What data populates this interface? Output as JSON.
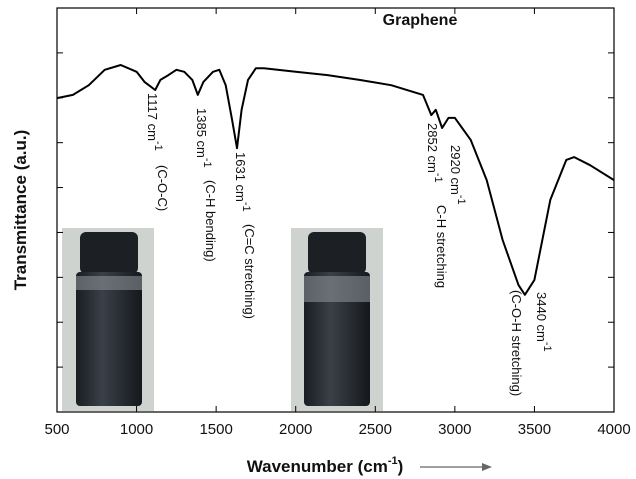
{
  "chart_data": {
    "type": "line",
    "title": "Graphene",
    "xlabel": "Wavenumber (cm",
    "xlabel_sup": "-1",
    "xlabel_end": ")",
    "ylabel": "Transmittance (a.u.)",
    "xlim": [
      500,
      4000
    ],
    "xticks": [
      500,
      1000,
      1500,
      2000,
      2500,
      3000,
      3500,
      4000
    ],
    "ylim": [
      0,
      100
    ],
    "x": [
      500,
      600,
      700,
      800,
      900,
      1000,
      1050,
      1117,
      1150,
      1200,
      1250,
      1300,
      1350,
      1385,
      1420,
      1480,
      1520,
      1560,
      1600,
      1631,
      1660,
      1700,
      1750,
      1800,
      2000,
      2200,
      2400,
      2600,
      2800,
      2852,
      2880,
      2920,
      2960,
      3000,
      3100,
      3200,
      3300,
      3400,
      3440,
      3500,
      3600,
      3700,
      3750,
      3850,
      4000
    ],
    "series": [
      {
        "name": "Graphene",
        "color": "#000000",
        "values": [
          77.7,
          78.5,
          80.9,
          84.7,
          85.9,
          84.2,
          81.7,
          79.7,
          82.2,
          83.4,
          84.7,
          84.2,
          82.2,
          78.5,
          81.7,
          84.2,
          84.7,
          80.9,
          72.3,
          65.3,
          74.8,
          82.2,
          85.1,
          85.1,
          84.2,
          83.4,
          82.2,
          80.9,
          78.5,
          73.5,
          74.8,
          70.3,
          72.8,
          72.8,
          67.3,
          57.4,
          42.6,
          31.4,
          29.0,
          32.7,
          52.5,
          62.4,
          63.1,
          61.1,
          57.4
        ]
      }
    ],
    "annotations": [
      {
        "text": "1117 cm",
        "sup": "-1",
        "note": "(C-O-C)"
      },
      {
        "text": "1385 cm",
        "sup": "-1",
        "note": "(C-H bending)"
      },
      {
        "text": "1631 cm",
        "sup": "-1",
        "note": "(C=C stretching)"
      },
      {
        "text": "2852 cm",
        "sup": "-1"
      },
      {
        "text": "2920 cm",
        "sup": "-1",
        "note": "C-H stretching"
      },
      {
        "text": "3440 cm",
        "sup": "-1",
        "note": "(C-O-H stretching)"
      }
    ]
  }
}
